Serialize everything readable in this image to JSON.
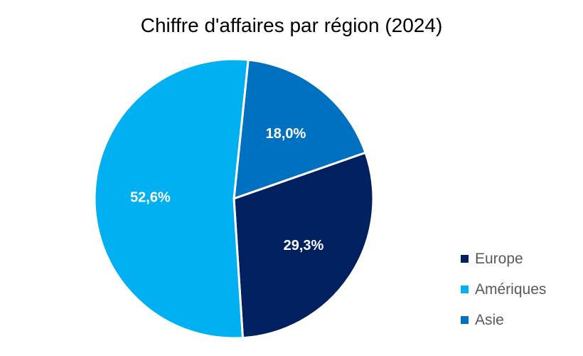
{
  "chart_data": {
    "type": "pie",
    "title": "Chiffre d'affaires par région (2024)",
    "slices": [
      {
        "name": "Asie",
        "value": 18.0,
        "label": "18,0%",
        "color": "#0070C0"
      },
      {
        "name": "Europe",
        "value": 29.3,
        "label": "29,3%",
        "color": "#002060"
      },
      {
        "name": "Amériques",
        "value": 52.6,
        "label": "52,6%",
        "color": "#00B0F0"
      }
    ],
    "legend": {
      "position": "bottom-right",
      "entries": [
        {
          "name": "Europe",
          "color": "#002060"
        },
        {
          "name": "Amériques",
          "color": "#00B0F0"
        },
        {
          "name": "Asie",
          "color": "#0070C0"
        }
      ]
    }
  }
}
